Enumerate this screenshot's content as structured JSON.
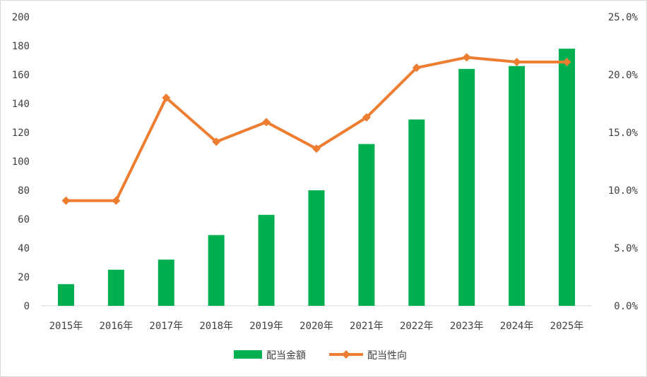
{
  "chart_data": {
    "type": "bar+line",
    "categories": [
      "2015年",
      "2016年",
      "2017年",
      "2018年",
      "2019年",
      "2020年",
      "2021年",
      "2022年",
      "2023年",
      "2024年",
      "2025年"
    ],
    "series": [
      {
        "name": "配当金額",
        "type": "bar",
        "axis": "left",
        "color": "#00b050",
        "values": [
          15,
          25,
          32,
          49,
          63,
          80,
          112,
          129,
          164,
          166,
          178
        ]
      },
      {
        "name": "配当性向",
        "type": "line",
        "axis": "right",
        "color": "#ed7d31",
        "marker": "diamond",
        "values": [
          9.1,
          9.1,
          18.0,
          14.2,
          15.9,
          13.6,
          16.3,
          20.6,
          21.5,
          21.1,
          21.1
        ]
      }
    ],
    "ylim_left": [
      0,
      200
    ],
    "yticks_left": [
      "0",
      "20",
      "40",
      "60",
      "80",
      "100",
      "120",
      "140",
      "160",
      "180",
      "200"
    ],
    "ylim_right": [
      0,
      25
    ],
    "yticks_right": [
      "0.0%",
      "5.0%",
      "10.0%",
      "15.0%",
      "20.0%",
      "25.0%"
    ],
    "legend_position": "bottom",
    "grid": false
  }
}
